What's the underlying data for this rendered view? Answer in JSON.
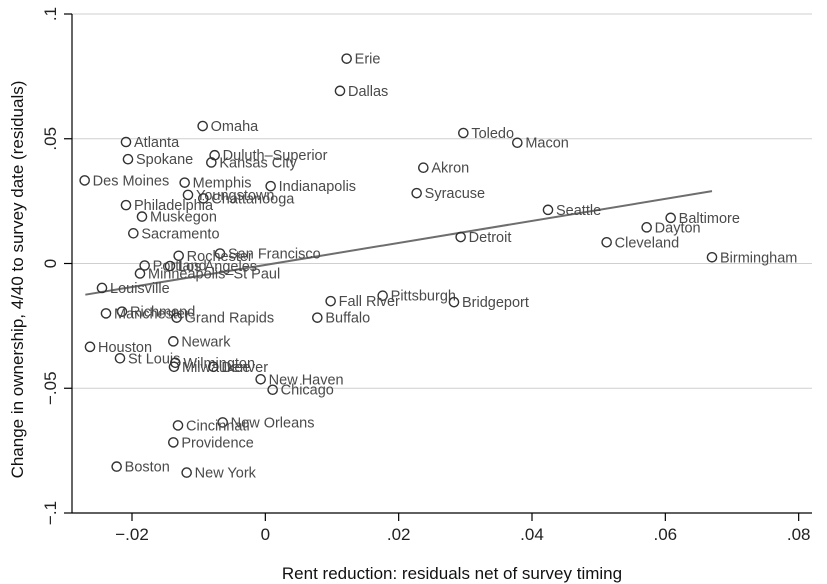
{
  "chart_data": {
    "type": "scatter",
    "xlabel": "Rent reduction: residuals net of survey timing",
    "ylabel": "Change in ownership, 4/40 to survey date (residuals)",
    "xlim": [
      -0.029,
      0.082
    ],
    "ylim": [
      -0.1,
      0.1
    ],
    "xticks": [
      -0.02,
      0,
      0.02,
      0.04,
      0.06,
      0.08
    ],
    "xtick_labels": [
      "−.02",
      "0",
      ".02",
      ".04",
      ".06",
      ".08"
    ],
    "yticks": [
      -0.1,
      -0.05,
      0,
      0.05,
      0.1
    ],
    "ytick_labels": [
      "−.1",
      "−.05",
      "0",
      ".05",
      ".1"
    ],
    "grid": "horizontal",
    "legend": "none",
    "colors": {
      "marker": "#333333",
      "label": "#4a4a4a",
      "fit_line": "#6e6e6e",
      "grid": "#cfcfcf"
    },
    "fit_line": {
      "x": [
        -0.027,
        0.067
      ],
      "y": [
        -0.0125,
        0.029
      ]
    },
    "points": [
      {
        "label": "Erie",
        "x": 0.0122,
        "y": 0.0821
      },
      {
        "label": "Dallas",
        "x": 0.0112,
        "y": 0.0692
      },
      {
        "label": "Omaha",
        "x": -0.0094,
        "y": 0.0551
      },
      {
        "label": "Toledo",
        "x": 0.0297,
        "y": 0.0523
      },
      {
        "label": "Macon",
        "x": 0.0378,
        "y": 0.0484
      },
      {
        "label": "Atlanta",
        "x": -0.0209,
        "y": 0.0487
      },
      {
        "label": "Duluth–Superior",
        "x": -0.0076,
        "y": 0.0434
      },
      {
        "label": "Spokane",
        "x": -0.0206,
        "y": 0.0418
      },
      {
        "label": "Kansas City",
        "x": -0.0081,
        "y": 0.0405
      },
      {
        "label": "Akron",
        "x": 0.0237,
        "y": 0.0384
      },
      {
        "label": "Des Moines",
        "x": -0.0271,
        "y": 0.0333
      },
      {
        "label": "Memphis",
        "x": -0.0121,
        "y": 0.0324
      },
      {
        "label": "Indianapolis",
        "x": 0.0008,
        "y": 0.031
      },
      {
        "label": "Syracuse",
        "x": 0.0227,
        "y": 0.0282
      },
      {
        "label": "Youngstown",
        "x": -0.0116,
        "y": 0.0275
      },
      {
        "label": "Chattanooga",
        "x": -0.0093,
        "y": 0.0261
      },
      {
        "label": "Philadelphia",
        "x": -0.0209,
        "y": 0.0234
      },
      {
        "label": "Seattle",
        "x": 0.0424,
        "y": 0.0215
      },
      {
        "label": "Muskegon",
        "x": -0.0185,
        "y": 0.0188
      },
      {
        "label": "Baltimore",
        "x": 0.0608,
        "y": 0.0183
      },
      {
        "label": "Dayton",
        "x": 0.0572,
        "y": 0.0145
      },
      {
        "label": "Sacramento",
        "x": -0.0198,
        "y": 0.0121
      },
      {
        "label": "Detroit",
        "x": 0.0293,
        "y": 0.0106
      },
      {
        "label": "Cleveland",
        "x": 0.0512,
        "y": 0.0085
      },
      {
        "label": "San Francisco",
        "x": -0.0068,
        "y": 0.004
      },
      {
        "label": "Rochester",
        "x": -0.013,
        "y": 0.0031
      },
      {
        "label": "Birmingham",
        "x": 0.067,
        "y": 0.0025
      },
      {
        "label": "Portland",
        "x": -0.0181,
        "y": -0.0008
      },
      {
        "label": "Los Angeles",
        "x": -0.0143,
        "y": -0.001
      },
      {
        "label": "Minneapolis–St Paul",
        "x": -0.0188,
        "y": -0.004
      },
      {
        "label": "Louisville",
        "x": -0.0245,
        "y": -0.0098
      },
      {
        "label": "Pittsburgh",
        "x": 0.0176,
        "y": -0.0129
      },
      {
        "label": "Fall River",
        "x": 0.0098,
        "y": -0.0151
      },
      {
        "label": "Bridgeport",
        "x": 0.0283,
        "y": -0.0155
      },
      {
        "label": "Richmond",
        "x": -0.0215,
        "y": -0.0193
      },
      {
        "label": "Manchester",
        "x": -0.0239,
        "y": -0.02
      },
      {
        "label": "Grand Rapids",
        "x": -0.0133,
        "y": -0.0217
      },
      {
        "label": "Buffalo",
        "x": 0.0078,
        "y": -0.0217
      },
      {
        "label": "Newark",
        "x": -0.0138,
        "y": -0.0312
      },
      {
        "label": "Houston",
        "x": -0.0263,
        "y": -0.0334
      },
      {
        "label": "St Louis",
        "x": -0.0218,
        "y": -0.038
      },
      {
        "label": "Wilmington",
        "x": -0.0135,
        "y": -0.0398
      },
      {
        "label": "Milwaukee",
        "x": -0.0137,
        "y": -0.0414
      },
      {
        "label": "Denver",
        "x": -0.0078,
        "y": -0.0414
      },
      {
        "label": "New Haven",
        "x": -0.0007,
        "y": -0.0464
      },
      {
        "label": "Chicago",
        "x": 0.0011,
        "y": -0.0506
      },
      {
        "label": "New Orleans",
        "x": -0.0064,
        "y": -0.0637
      },
      {
        "label": "Cincinnati",
        "x": -0.0131,
        "y": -0.0649
      },
      {
        "label": "Providence",
        "x": -0.0138,
        "y": -0.0717
      },
      {
        "label": "Boston",
        "x": -0.0223,
        "y": -0.0814
      },
      {
        "label": "New York",
        "x": -0.0118,
        "y": -0.0838
      }
    ]
  }
}
